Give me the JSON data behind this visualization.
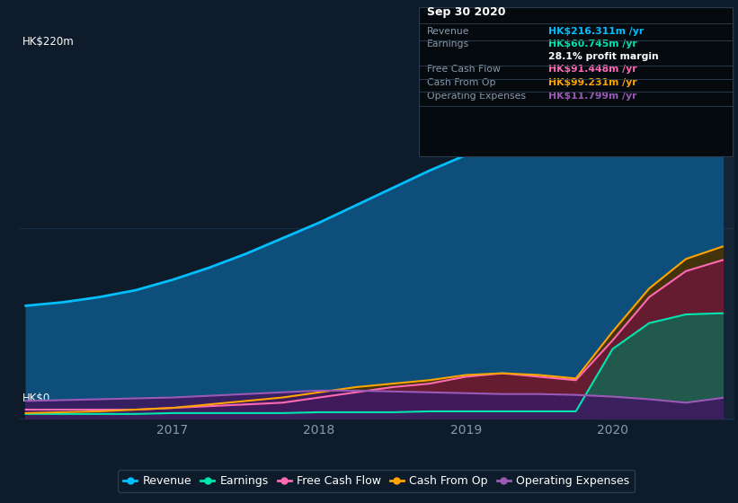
{
  "bg_color": "#0d1b2a",
  "plot_bg_color": "#0d1b2a",
  "ylabel_top": "HK$220m",
  "ylabel_bottom": "HK$0",
  "x_years": [
    2016.0,
    2016.25,
    2016.5,
    2016.75,
    2017.0,
    2017.25,
    2017.5,
    2017.75,
    2018.0,
    2018.25,
    2018.5,
    2018.75,
    2019.0,
    2019.25,
    2019.5,
    2019.75,
    2020.0,
    2020.25,
    2020.5,
    2020.75
  ],
  "revenue": [
    65,
    67,
    70,
    74,
    80,
    87,
    95,
    104,
    113,
    123,
    133,
    143,
    152,
    161,
    170,
    180,
    192,
    203,
    213,
    216
  ],
  "earnings": [
    2.5,
    2.5,
    2.5,
    2.5,
    3,
    3,
    3,
    3,
    3.5,
    3.5,
    3.5,
    4,
    4,
    4,
    4,
    4,
    40,
    55,
    60,
    60.7
  ],
  "free_cash": [
    5,
    5,
    5,
    5,
    6,
    7,
    8,
    9,
    12,
    15,
    18,
    20,
    24,
    26,
    24,
    22,
    45,
    70,
    85,
    91.4
  ],
  "cash_op": [
    3,
    3.5,
    4,
    5,
    6,
    8,
    10,
    12,
    15,
    18,
    20,
    22,
    25,
    26,
    25,
    23,
    50,
    75,
    92,
    99.2
  ],
  "op_exp": [
    10,
    10.5,
    11,
    11.5,
    12,
    13,
    14,
    15,
    16,
    16,
    15.5,
    15,
    14.5,
    14,
    14,
    13.5,
    12.5,
    11,
    9,
    11.8
  ],
  "revenue_color": "#00bfff",
  "earnings_color": "#00e5b0",
  "free_cash_color": "#ff69b4",
  "cash_op_color": "#ffa500",
  "op_exp_color": "#9b59b6",
  "revenue_fill": "#0d4f7a",
  "earnings_fill": "#1a6050",
  "free_cash_fill": "#6b1a35",
  "cash_op_fill": "#4a3000",
  "op_exp_fill": "#3d1a60",
  "highlight_color": "#1e2e40",
  "grid_color": "#1e3a5a",
  "xticks": [
    2017.0,
    2018.0,
    2019.0,
    2020.0
  ],
  "xtick_labels": [
    "2017",
    "2018",
    "2019",
    "2020"
  ],
  "tooltip": {
    "title": "Sep 30 2020",
    "rows": [
      {
        "label": "Revenue",
        "value": "HK$216.311m /yr",
        "value_color": "#00bfff",
        "label_color": "#8899aa"
      },
      {
        "label": "Earnings",
        "value": "HK$60.745m /yr",
        "value_color": "#00e5b0",
        "label_color": "#8899aa"
      },
      {
        "label": "",
        "value": "28.1% profit margin",
        "value_color": "#ffffff",
        "label_color": "#8899aa"
      },
      {
        "label": "Free Cash Flow",
        "value": "HK$91.448m /yr",
        "value_color": "#ff69b4",
        "label_color": "#8899aa"
      },
      {
        "label": "Cash From Op",
        "value": "HK$99.231m /yr",
        "value_color": "#ffa500",
        "label_color": "#8899aa"
      },
      {
        "label": "Operating Expenses",
        "value": "HK$11.799m /yr",
        "value_color": "#9b59b6",
        "label_color": "#8899aa"
      }
    ]
  },
  "legend": [
    {
      "label": "Revenue",
      "color": "#00bfff"
    },
    {
      "label": "Earnings",
      "color": "#00e5b0"
    },
    {
      "label": "Free Cash Flow",
      "color": "#ff69b4"
    },
    {
      "label": "Cash From Op",
      "color": "#ffa500"
    },
    {
      "label": "Operating Expenses",
      "color": "#9b59b6"
    }
  ]
}
